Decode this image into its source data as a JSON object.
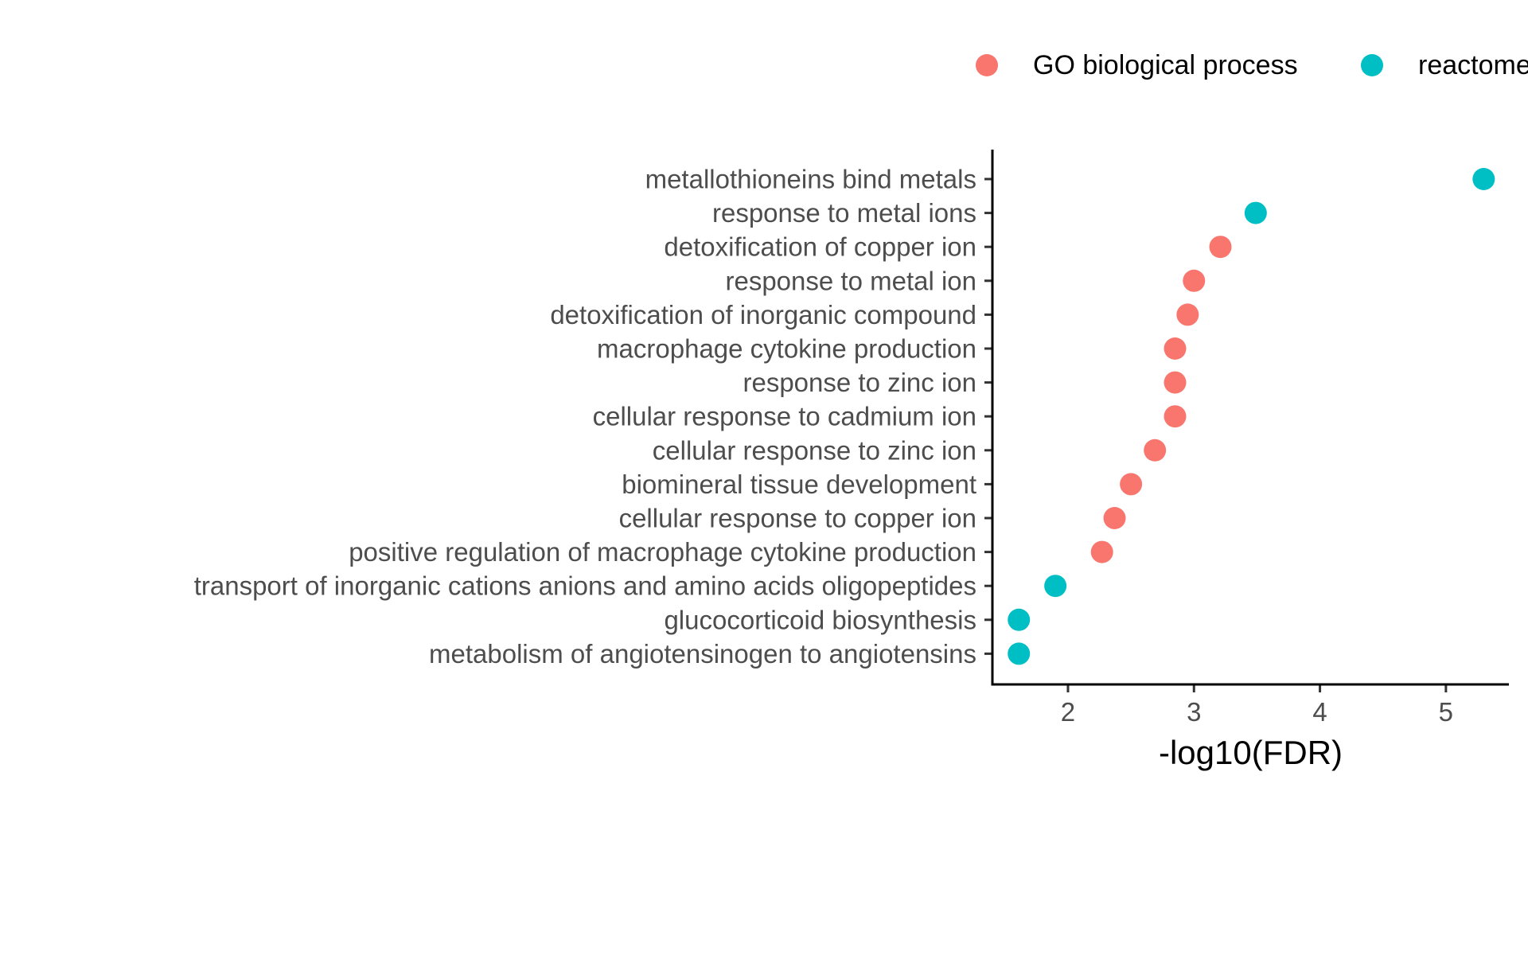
{
  "chart_data": {
    "type": "scatter",
    "title": "",
    "xlabel": "-log10(FDR)",
    "ylabel": "",
    "xlim": [
      1.4,
      5.5
    ],
    "xticks": [
      2,
      3,
      4,
      5
    ],
    "grid": false,
    "legend_position": "top",
    "categories": [
      "metallothioneins bind metals",
      "response to metal ions",
      "detoxification of copper ion",
      "response to metal ion",
      "detoxification of inorganic compound",
      "macrophage cytokine production",
      "response to zinc ion",
      "cellular response to cadmium ion",
      "cellular response to zinc ion",
      "biomineral tissue development",
      "cellular response to copper ion",
      "positive regulation of macrophage cytokine production",
      "transport of inorganic cations anions and amino acids oligopeptides",
      "glucocorticoid biosynthesis",
      "metabolism of angiotensinogen to angiotensins"
    ],
    "series": [
      {
        "name": "GO biological process",
        "color": "#F8766D",
        "points": [
          {
            "category": "detoxification of copper ion",
            "x": 3.21
          },
          {
            "category": "response to metal ion",
            "x": 3.0
          },
          {
            "category": "detoxification of inorganic compound",
            "x": 2.95
          },
          {
            "category": "macrophage cytokine production",
            "x": 2.85
          },
          {
            "category": "response to zinc ion",
            "x": 2.85
          },
          {
            "category": "cellular response to cadmium ion",
            "x": 2.85
          },
          {
            "category": "cellular response to zinc ion",
            "x": 2.69
          },
          {
            "category": "biomineral tissue development",
            "x": 2.5
          },
          {
            "category": "cellular response to copper ion",
            "x": 2.37
          },
          {
            "category": "positive regulation of macrophage cytokine production",
            "x": 2.27
          }
        ]
      },
      {
        "name": "reactome",
        "color": "#00BFC4",
        "points": [
          {
            "category": "metallothioneins bind metals",
            "x": 5.3
          },
          {
            "category": "response to metal ions",
            "x": 3.49
          },
          {
            "category": "transport of inorganic cations anions and amino acids oligopeptides",
            "x": 1.9
          },
          {
            "category": "glucocorticoid biosynthesis",
            "x": 1.61
          },
          {
            "category": "metabolism of angiotensinogen to angiotensins",
            "x": 1.61
          }
        ]
      }
    ]
  }
}
